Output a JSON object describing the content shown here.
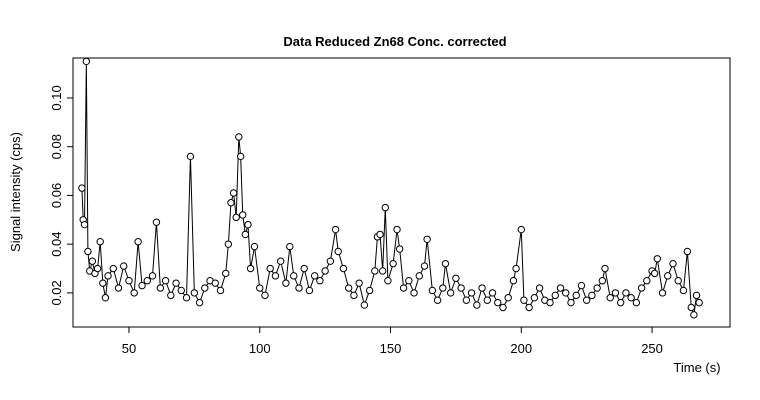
{
  "chart_data": {
    "type": "line",
    "title": "Data Reduced Zn68 Conc. corrected",
    "x_label": "Time (s)",
    "y_label": "Signal intensity (cps)",
    "color": "#000000",
    "x": [
      32,
      32.5,
      33,
      33.7,
      34.3,
      35,
      36,
      37,
      38,
      39,
      40,
      41,
      42,
      44,
      46,
      48,
      50,
      52,
      53.5,
      55,
      57,
      59,
      60.5,
      62,
      64,
      66,
      68,
      70,
      72,
      73.5,
      75,
      77,
      79,
      81,
      83,
      85,
      87,
      88,
      89,
      90,
      91,
      92,
      92.7,
      93.5,
      94.5,
      95.5,
      96.5,
      98,
      100,
      102,
      104,
      106,
      108,
      110,
      111.5,
      113,
      115,
      117,
      119,
      121,
      123,
      125,
      127,
      129,
      130,
      132,
      134,
      136,
      138,
      140,
      142,
      144,
      145,
      146,
      147,
      148,
      149,
      151,
      152.5,
      153.5,
      155,
      157,
      159,
      161,
      163,
      164,
      166,
      168,
      170,
      171,
      173,
      175,
      177,
      179,
      181,
      183,
      185,
      187,
      189,
      191,
      193,
      195,
      197,
      198,
      200,
      201,
      203,
      205,
      207,
      209,
      211,
      213,
      215,
      217,
      219,
      221,
      223,
      225,
      227,
      229,
      231,
      232,
      234,
      236,
      238,
      240,
      242,
      244,
      246,
      248,
      250,
      251,
      252,
      254,
      256,
      258,
      260,
      262,
      263.5,
      265,
      266,
      267,
      268
    ],
    "values": [
      0.063,
      0.05,
      0.048,
      0.115,
      0.037,
      0.029,
      0.033,
      0.028,
      0.03,
      0.041,
      0.024,
      0.018,
      0.027,
      0.03,
      0.022,
      0.031,
      0.025,
      0.02,
      0.041,
      0.023,
      0.025,
      0.027,
      0.049,
      0.022,
      0.025,
      0.019,
      0.024,
      0.021,
      0.018,
      0.076,
      0.02,
      0.016,
      0.022,
      0.025,
      0.024,
      0.021,
      0.028,
      0.04,
      0.057,
      0.061,
      0.051,
      0.084,
      0.076,
      0.052,
      0.044,
      0.048,
      0.03,
      0.039,
      0.022,
      0.019,
      0.03,
      0.027,
      0.033,
      0.024,
      0.039,
      0.027,
      0.022,
      0.03,
      0.021,
      0.027,
      0.025,
      0.029,
      0.033,
      0.046,
      0.037,
      0.03,
      0.022,
      0.019,
      0.024,
      0.015,
      0.021,
      0.029,
      0.043,
      0.044,
      0.029,
      0.055,
      0.025,
      0.032,
      0.046,
      0.038,
      0.022,
      0.025,
      0.02,
      0.027,
      0.031,
      0.042,
      0.021,
      0.017,
      0.022,
      0.032,
      0.02,
      0.026,
      0.022,
      0.017,
      0.02,
      0.015,
      0.022,
      0.017,
      0.02,
      0.016,
      0.014,
      0.018,
      0.025,
      0.03,
      0.046,
      0.017,
      0.014,
      0.018,
      0.022,
      0.017,
      0.016,
      0.019,
      0.022,
      0.02,
      0.016,
      0.019,
      0.023,
      0.017,
      0.019,
      0.022,
      0.025,
      0.03,
      0.018,
      0.02,
      0.016,
      0.02,
      0.018,
      0.016,
      0.022,
      0.025,
      0.029,
      0.028,
      0.034,
      0.02,
      0.027,
      0.032,
      0.025,
      0.021,
      0.037,
      0.014,
      0.011,
      0.019,
      0.016
    ],
    "xlim": [
      28.6,
      279.8
    ],
    "ylim": [
      0.006,
      0.1164
    ],
    "xticks": [
      50,
      100,
      150,
      200,
      250
    ],
    "yticks": [
      0.02,
      0.04,
      0.06,
      0.08,
      {
        "value": 0.1,
        "label": "0.10"
      }
    ]
  }
}
